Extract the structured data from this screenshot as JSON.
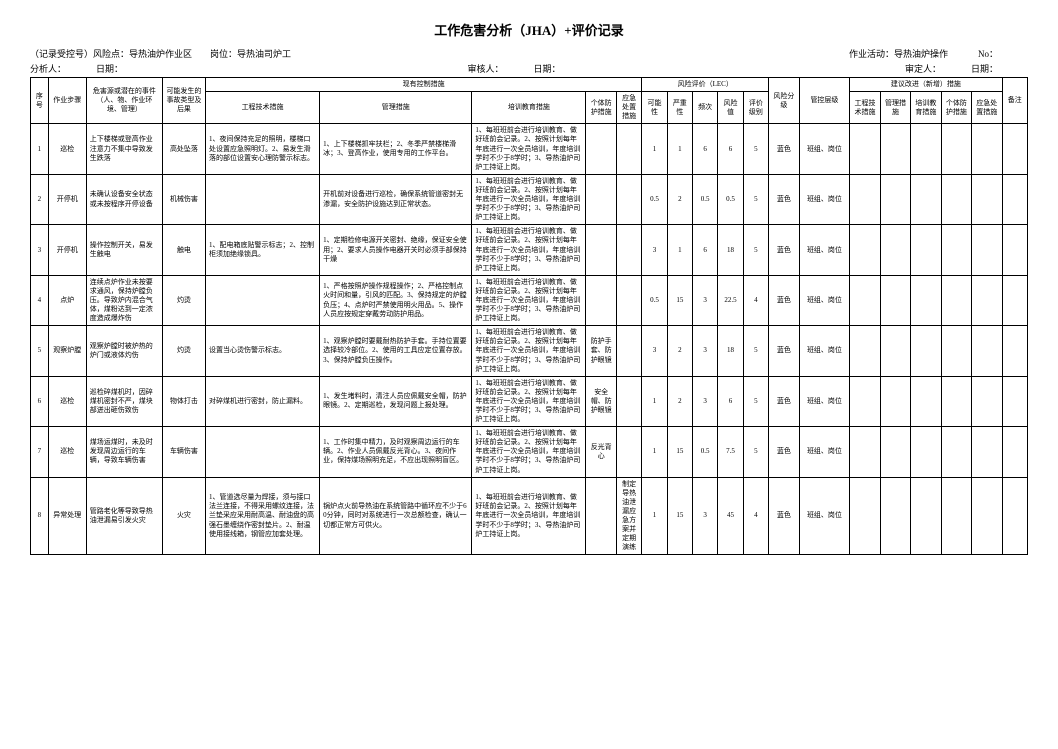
{
  "title": "工作危害分析（JHA）+评价记录",
  "meta": {
    "line1_left": "（记录受控号）风险点：导热油炉作业区　　岗位：导热油司炉工",
    "line1_right_activity": "作业活动：导热油炉操作",
    "line1_right_no": "No：",
    "line2_analyst": "分析人：",
    "line2_date1": "日期：",
    "line2_auditor": "审核人：",
    "line2_date2": "日期：",
    "line2_approver": "审定人：",
    "line2_date3": "日期："
  },
  "headers": {
    "seq": "序号",
    "step": "作业步骤",
    "event": "危害源或潜在的事件（人、物、作业环境、管理）",
    "consequence": "可能发生的事故类型及后果",
    "existing": "现有控制措施",
    "tech": "工程技术措施",
    "mgmt": "管理措施",
    "train": "培训教育措施",
    "ppe": "个体防护措施",
    "emerg": "应急处置措施",
    "lec_group": "风险评价（LEC）",
    "L": "可能性",
    "E": "严重性",
    "C": "频次",
    "D": "风险值",
    "level": "评价级别",
    "risk_grade": "风险分级",
    "ctrl_level": "管控层级",
    "suggest": "建议改进（新增）措施",
    "sug_tech": "工程技术措施",
    "sug_mgmt": "管理措施",
    "sug_train": "培训教育措施",
    "sug_ppe": "个体防护措施",
    "sug_emerg": "应急处置措施",
    "note": "备注"
  },
  "rows": [
    {
      "seq": "1",
      "step": "巡检",
      "event": "上下楼梯或登高作业注意力不集中导致发生跌落",
      "consequence": "高处坠落",
      "tech": "1、夜间保持充足的照明，楼梯口处设置应急照明灯。2、易发生滑落的部位设置安心理防警示标志。",
      "mgmt": "1、上下楼梯抓牢扶栏；2、冬季严禁楼梯滑冰；3、登高作业，使用专用的工作平台。",
      "train": "1、每班班前会进行培训教育、做好班前会记录。2、按照计划每年年底进行一次全员培训，年度培训学时不少于8学时；3、导热油炉司炉工持证上岗。",
      "ppe": "",
      "emerg": "",
      "L": "1",
      "E": "1",
      "C": "6",
      "D": "6",
      "level": "5",
      "color": "蓝色",
      "ctrl": "班组、岗位"
    },
    {
      "seq": "2",
      "step": "开停机",
      "event": "未确认设备安全状态或未按程序开停设备",
      "consequence": "机械伤害",
      "tech": "",
      "mgmt": "开机前对设备进行巡检，确保系统管道密封无渗漏，安全防护设施达到正常状态。",
      "train": "1、每班班前会进行培训教育、做好班前会记录。2、按照计划每年年底进行一次全员培训，年度培训学时不少于8学时；3、导热油炉司炉工持证上岗。",
      "ppe": "",
      "emerg": "",
      "L": "0.5",
      "E": "2",
      "C": "0.5",
      "D": "0.5",
      "level": "5",
      "color": "蓝色",
      "ctrl": "班组、岗位"
    },
    {
      "seq": "3",
      "step": "开停机",
      "event": "操作控制开关，易发生触电",
      "consequence": "触电",
      "tech": "1、配电箱底贴警示标志；2、控制柜须加绝缘锁具。",
      "mgmt": "1、定期检修电源开关密封、绝缘，保证安全使用；2、要求人员操作电器开关时必须手部保持干燥",
      "train": "1、每班班前会进行培训教育、做好班前会记录。2、按照计划每年年底进行一次全员培训，年度培训学时不少于8学时；3、导热油炉司炉工持证上岗。",
      "ppe": "",
      "emerg": "",
      "L": "3",
      "E": "1",
      "C": "6",
      "D": "18",
      "level": "5",
      "color": "蓝色",
      "ctrl": "班组、岗位"
    },
    {
      "seq": "4",
      "step": "点炉",
      "event": "连续点炉作业未按要求通风，保持炉膛负压。导致炉内混合气体，煤粉达到一定浓度造成爆炸伤",
      "consequence": "灼烫",
      "tech": "",
      "mgmt": "1、严格按照炉操作规程操作；2、严格控制点火时间和量，引风的匹配。3、保持规定的炉膛负压；4、点炉时严禁使用明火用品。5、操作人员应按规定穿戴劳动防护用品。",
      "train": "1、每班班前会进行培训教育、做好班前会记录。2、按照计划每年年底进行一次全员培训，年度培训学时不少于8学时；3、导热油炉司炉工持证上岗。",
      "ppe": "",
      "emerg": "",
      "L": "0.5",
      "E": "15",
      "C": "3",
      "D": "22.5",
      "level": "4",
      "color": "蓝色",
      "ctrl": "班组、岗位"
    },
    {
      "seq": "5",
      "step": "观察炉膛",
      "event": "观察炉膛时被炉热的炉门或液体灼伤",
      "consequence": "灼烫",
      "tech": "设置当心烫伤警示标志。",
      "mgmt": "1、观察炉膛时要戴耐热防护手套。手持位置要选择较冷部位。2、使用的工具应定位置存放。3、保持炉膛负压操作。",
      "train": "1、每班班前会进行培训教育、做好班前会记录。2、按照计划每年年底进行一次全员培训，年度培训学时不少于8学时；3、导热油炉司炉工持证上岗。",
      "ppe": "防护手套、防护眼镜",
      "emerg": "",
      "L": "3",
      "E": "2",
      "C": "3",
      "D": "18",
      "level": "5",
      "color": "蓝色",
      "ctrl": "班组、岗位"
    },
    {
      "seq": "6",
      "step": "巡检",
      "event": "巡检碎煤机时，因碎煤机密封不严，煤块部迸出砸伤致伤",
      "consequence": "物体打击",
      "tech": "对碎煤机进行密封，防止漏料。",
      "mgmt": "1、发生堵料时，清注人员应佩戴安全帽，防护眼镜。2、定期巡检，发现问题上报处理。",
      "train": "1、每班班前会进行培训教育、做好班前会记录。2、按照计划每年年底进行一次全员培训，年度培训学时不少于8学时；3、导热油炉司炉工持证上岗。",
      "ppe": "安全帽、防护眼镜",
      "emerg": "",
      "L": "1",
      "E": "2",
      "C": "3",
      "D": "6",
      "level": "5",
      "color": "蓝色",
      "ctrl": "班组、岗位"
    },
    {
      "seq": "7",
      "step": "巡检",
      "event": "煤场运煤时，未及时发现周边运行的车辆，导致车辆伤害",
      "consequence": "车辆伤害",
      "tech": "",
      "mgmt": "1、工作时集中精力，及时观察周边运行的车辆。2、作业人员佩戴反光背心。3、夜间作业，保持煤场照明充足，不应出现照明盲区。",
      "train": "1、每班班前会进行培训教育、做好班前会记录。2、按照计划每年年底进行一次全员培训，年度培训学时不少于8学时；3、导热油炉司炉工持证上岗。",
      "ppe": "反光背心",
      "emerg": "",
      "L": "1",
      "E": "15",
      "C": "0.5",
      "D": "7.5",
      "level": "5",
      "color": "蓝色",
      "ctrl": "班组、岗位"
    },
    {
      "seq": "8",
      "step": "异常处理",
      "event": "管路老化等导致导热油泄漏易引发火灾",
      "consequence": "火灾",
      "tech": "1、管道选尽量为焊接，须与接口法兰连接，不得采用螺纹连接，法兰垫采应采用耐高温、耐油盘的高强石墨缠绕作密封垫片。2、耐温使用接线箱，钢管应加套处理。",
      "mgmt": "锅炉点火前导热油在系统管路中循环应不少于60分钟，同时对系统进行一次总额检查，确认一切都正常方可供火。",
      "train": "1、每班班前会进行培训教育、做好班前会记录。2、按照计划每年年底进行一次全员培训，年度培训学时不少于8学时；3、导热油炉司炉工持证上岗。",
      "ppe": "",
      "emerg": "制定导热油泄漏应急方案并定期演练",
      "L": "1",
      "E": "15",
      "C": "3",
      "D": "45",
      "level": "4",
      "color": "蓝色",
      "ctrl": "班组、岗位"
    }
  ]
}
